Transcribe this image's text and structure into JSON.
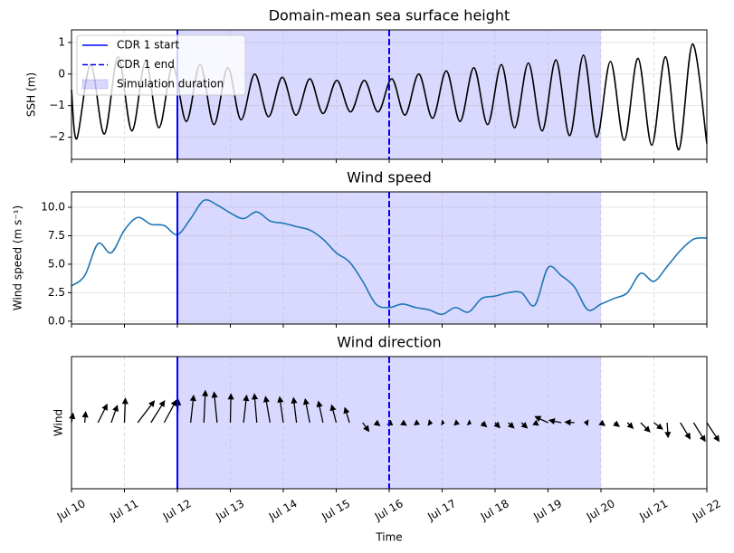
{
  "chart_data": [
    {
      "type": "line",
      "title": "Domain-mean sea surface height",
      "y_label": "SSH (m)",
      "x": [
        0,
        0.1,
        0.36,
        0.62,
        0.88,
        1.14,
        1.4,
        1.65,
        1.91,
        2.17,
        2.43,
        2.69,
        2.95,
        3.2,
        3.46,
        3.72,
        3.98,
        4.24,
        4.5,
        4.75,
        5.01,
        5.27,
        5.53,
        5.79,
        6.05,
        6.3,
        6.56,
        6.82,
        7.08,
        7.34,
        7.6,
        7.86,
        8.12,
        8.37,
        8.63,
        8.89,
        9.15,
        9.41,
        9.67,
        9.92,
        10.18,
        10.44,
        10.7,
        10.96,
        11.22,
        11.47,
        11.73,
        12
      ],
      "values": [
        -0.5,
        -2.05,
        0.3,
        -1.9,
        0.55,
        -1.8,
        0.4,
        -1.7,
        0.25,
        -1.5,
        0.3,
        -1.6,
        0.2,
        -1.45,
        0.0,
        -1.35,
        -0.1,
        -1.3,
        -0.15,
        -1.25,
        -0.2,
        -1.2,
        -0.2,
        -1.2,
        -0.15,
        -1.3,
        0.0,
        -1.4,
        0.1,
        -1.5,
        0.2,
        -1.6,
        0.3,
        -1.7,
        0.35,
        -1.8,
        0.45,
        -1.95,
        0.6,
        -2.0,
        0.4,
        -2.1,
        0.5,
        -2.25,
        0.55,
        -2.4,
        0.95,
        -2.2
      ],
      "color": "#000000",
      "xlim": [
        0,
        12
      ],
      "ylim": [
        -2.7,
        1.4
      ],
      "yticks": [
        {
          "value": -2,
          "label": "−2"
        },
        {
          "value": -1,
          "label": "−1"
        },
        0,
        1
      ],
      "grid": true,
      "legend": "upper left",
      "vlines": [
        {
          "name": "CDR 1 start",
          "x": 2,
          "color": "#0000ff",
          "style": "solid"
        },
        {
          "name": "CDR 1 end",
          "x": 6,
          "color": "#0000ff",
          "style": "dashed"
        }
      ],
      "span": {
        "name": "Simulation duration",
        "x": [
          2,
          10
        ],
        "color": "#0000ff"
      }
    },
    {
      "type": "line",
      "title": "Wind speed",
      "y_label": "Wind speed (m s⁻¹)",
      "x": [
        0,
        0.25,
        0.5,
        0.75,
        1,
        1.25,
        1.5,
        1.75,
        2,
        2.25,
        2.5,
        2.75,
        3,
        3.25,
        3.5,
        3.75,
        4,
        4.25,
        4.5,
        4.75,
        5,
        5.25,
        5.5,
        5.75,
        6,
        6.25,
        6.5,
        6.75,
        7,
        7.25,
        7.5,
        7.75,
        8,
        8.25,
        8.5,
        8.75,
        9,
        9.25,
        9.5,
        9.75,
        10,
        10.25,
        10.5,
        10.75,
        11,
        11.25,
        11.5,
        11.75,
        12
      ],
      "values": [
        3.1,
        4.0,
        6.8,
        6.0,
        8.0,
        9.1,
        8.5,
        8.4,
        7.6,
        9.0,
        10.6,
        10.2,
        9.5,
        9.0,
        9.6,
        8.8,
        8.6,
        8.3,
        8.0,
        7.2,
        6.0,
        5.2,
        3.5,
        1.5,
        1.2,
        1.5,
        1.2,
        1.0,
        0.6,
        1.2,
        0.8,
        2.0,
        2.2,
        2.5,
        2.5,
        1.4,
        4.7,
        4.0,
        3.0,
        1.0,
        1.5,
        2.0,
        2.5,
        4.2,
        3.5,
        4.8,
        6.2,
        7.2,
        7.3
      ],
      "color": "#1f77b4",
      "xlim": [
        0,
        12
      ],
      "ylim": [
        -0.25,
        11.35
      ],
      "yticks": [
        {
          "value": 0,
          "label": "0.0"
        },
        2.5,
        {
          "value": 5,
          "label": "5.0"
        },
        7.5,
        {
          "value": 10,
          "label": "10.0"
        }
      ],
      "grid": true
    },
    {
      "type": "quiver",
      "title": "Wind direction",
      "y_label": "Wind",
      "x_label": "Time",
      "x": [
        0,
        0.25,
        0.5,
        0.75,
        1,
        1.25,
        1.5,
        1.75,
        2,
        2.25,
        2.5,
        2.75,
        3,
        3.25,
        3.5,
        3.75,
        4,
        4.25,
        4.5,
        4.75,
        5,
        5.25,
        5.5,
        5.75,
        6,
        6.25,
        6.5,
        6.75,
        7,
        7.25,
        7.5,
        7.75,
        8,
        8.25,
        8.5,
        8.75,
        9,
        9.25,
        9.5,
        9.75,
        10,
        10.25,
        10.5,
        10.75,
        11,
        11.25,
        11.5,
        11.75,
        12
      ],
      "u": [
        0.5,
        0.3,
        3.0,
        2.0,
        0.3,
        5.5,
        4.5,
        4.0,
        0.3,
        1.0,
        0.5,
        -1.0,
        0.2,
        1.0,
        -0.8,
        -1.5,
        -1.2,
        -1.0,
        -1.5,
        -1.5,
        -1.5,
        -1.5,
        2.0,
        1.2,
        1.0,
        1.2,
        1.1,
        1.0,
        0.6,
        1.1,
        0.7,
        1.5,
        1.5,
        1.8,
        1.8,
        1.1,
        -4.2,
        -3.9,
        -3.0,
        -1.0,
        1.2,
        1.6,
        1.8,
        3.0,
        2.8,
        0.3,
        3.2,
        3.8,
        4.0
      ],
      "v": [
        3.0,
        3.5,
        6.0,
        5.6,
        8.0,
        7.2,
        7.2,
        7.4,
        7.6,
        9.0,
        10.6,
        10.1,
        9.5,
        9.0,
        9.5,
        8.6,
        8.5,
        8.2,
        7.8,
        7.0,
        5.8,
        4.9,
        -2.8,
        -0.9,
        -0.7,
        -0.8,
        -0.5,
        -0.2,
        -0.1,
        -0.4,
        -0.3,
        -1.3,
        -1.6,
        -1.7,
        -1.7,
        -0.8,
        2.0,
        0.8,
        0.2,
        0.1,
        -0.9,
        -1.2,
        -1.8,
        -3.0,
        -2.1,
        -4.8,
        -5.3,
        -6.1,
        -6.1
      ],
      "color": "#000000",
      "xlim": [
        0,
        12
      ],
      "xticks": [
        {
          "value": 0,
          "label": "Jul 10"
        },
        {
          "value": 1,
          "label": "Jul 11"
        },
        {
          "value": 2,
          "label": "Jul 12"
        },
        {
          "value": 3,
          "label": "Jul 13"
        },
        {
          "value": 4,
          "label": "Jul 14"
        },
        {
          "value": 5,
          "label": "Jul 15"
        },
        {
          "value": 6,
          "label": "Jul 16"
        },
        {
          "value": 7,
          "label": "Jul 17"
        },
        {
          "value": 8,
          "label": "Jul 18"
        },
        {
          "value": 9,
          "label": "Jul 19"
        },
        {
          "value": 10,
          "label": "Jul 20"
        },
        {
          "value": 11,
          "label": "Jul 21"
        },
        {
          "value": 12,
          "label": "Jul 22"
        }
      ],
      "grid": true
    }
  ]
}
